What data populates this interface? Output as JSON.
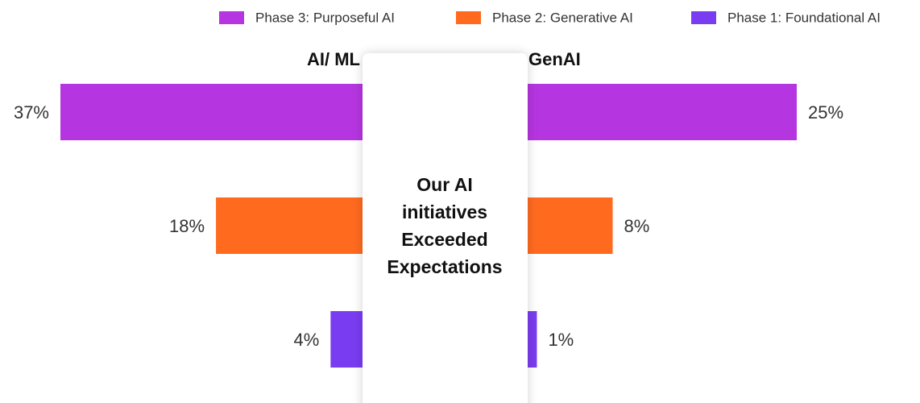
{
  "chart_data": {
    "type": "butterfly",
    "categories": [
      "Phase 3: Purposeful AI",
      "Phase 2: Generative AI",
      "Phase 1: Foundational AI"
    ],
    "colors": [
      "#b535e0",
      "#ff6a1f",
      "#7a3cf0"
    ],
    "series": [
      {
        "name": "AI/ ML",
        "values": [
          37,
          18,
          4
        ],
        "value_labels": [
          "37%",
          "18%",
          "4%"
        ]
      },
      {
        "name": "GenAI",
        "values": [
          25,
          8,
          1
        ],
        "value_labels": [
          "25%",
          "8%",
          "1%"
        ]
      }
    ],
    "annotation": "Our AI initiatives Exceeded Expectations",
    "legend": "top-right"
  }
}
